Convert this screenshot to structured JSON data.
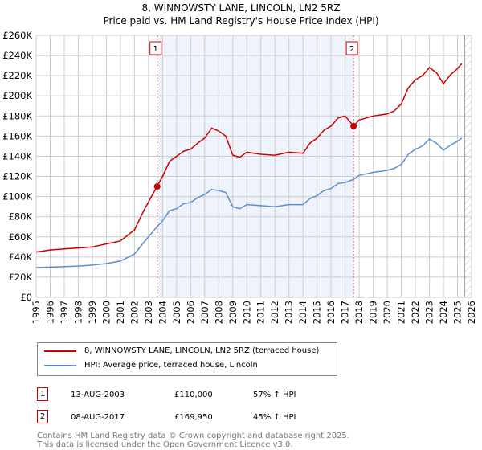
{
  "chart_data": {
    "type": "line",
    "title": "8, WINNOWSTY LANE, LINCOLN, LN2 5RZ",
    "subtitle": "Price paid vs. HM Land Registry's House Price Index (HPI)",
    "xlim": [
      1995,
      2026
    ],
    "ylim": [
      0,
      260000
    ],
    "yticks": [
      "£0",
      "£20K",
      "£40K",
      "£60K",
      "£80K",
      "£100K",
      "£120K",
      "£140K",
      "£160K",
      "£180K",
      "£200K",
      "£220K",
      "£240K",
      "£260K"
    ],
    "xticks": [
      "1995",
      "1996",
      "1997",
      "1998",
      "1999",
      "2000",
      "2001",
      "2002",
      "2003",
      "2004",
      "2005",
      "2006",
      "2007",
      "2008",
      "2009",
      "2010",
      "2011",
      "2012",
      "2013",
      "2014",
      "2015",
      "2016",
      "2017",
      "2018",
      "2019",
      "2020",
      "2021",
      "2022",
      "2023",
      "2024",
      "2025",
      "2026"
    ],
    "x": [
      1995,
      1996,
      1997,
      1998,
      1999,
      2000,
      2001,
      2002,
      2002.7,
      2003.6,
      2004,
      2004.5,
      2005,
      2005.5,
      2006,
      2006.5,
      2007,
      2007.5,
      2008,
      2008.5,
      2009,
      2009.5,
      2010,
      2011,
      2012,
      2013,
      2014,
      2014.5,
      2015,
      2015.5,
      2016,
      2016.5,
      2017,
      2017.6,
      2018,
      2019,
      2020,
      2020.5,
      2021,
      2021.5,
      2022,
      2022.5,
      2023,
      2023.5,
      2024,
      2024.5,
      2025,
      2025.3
    ],
    "series": [
      {
        "name": "8, WINNOWSTY LANE, LINCOLN, LN2 5RZ (terraced house)",
        "color": "#cc0000",
        "values": [
          45000,
          47000,
          48000,
          49000,
          50000,
          53000,
          56000,
          67000,
          87000,
          110000,
          120000,
          135000,
          140000,
          145000,
          147000,
          153000,
          158000,
          168000,
          165000,
          160000,
          141000,
          139000,
          144000,
          142000,
          141000,
          144000,
          143000,
          153000,
          158000,
          166000,
          170000,
          178000,
          180000,
          169950,
          176000,
          180000,
          182000,
          185000,
          192000,
          208000,
          216000,
          220000,
          228000,
          223000,
          212000,
          221000,
          227000,
          232000
        ]
      },
      {
        "name": "HPI: Average price, terraced house, Lincoln",
        "color": "#5b8fd0",
        "values": [
          29500,
          30000,
          30500,
          31000,
          32000,
          33500,
          36000,
          43000,
          55000,
          70000,
          76000,
          86000,
          88000,
          93000,
          94000,
          99000,
          102000,
          107000,
          106000,
          104000,
          90000,
          88000,
          92000,
          91000,
          90000,
          92000,
          92000,
          98000,
          101000,
          106000,
          108000,
          113000,
          114000,
          117000,
          121000,
          124000,
          126000,
          128000,
          132000,
          142000,
          147000,
          150000,
          157000,
          153000,
          146000,
          151000,
          155000,
          158000
        ]
      }
    ],
    "sales": [
      {
        "label": "1",
        "date": "13-AUG-2003",
        "x": 2003.62,
        "price": 110000,
        "price_text": "£110,000",
        "hpi": "57% ↑ HPI"
      },
      {
        "label": "2",
        "date": "08-AUG-2017",
        "x": 2017.6,
        "price": 169950,
        "price_text": "£169,950",
        "hpi": "45% ↑ HPI"
      }
    ],
    "hatch_from": 2025.5
  },
  "footer": [
    "Contains HM Land Registry data © Crown copyright and database right 2025.",
    "This data is licensed under the Open Government Licence v3.0."
  ]
}
